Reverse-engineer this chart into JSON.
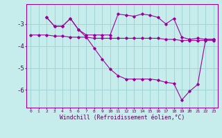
{
  "xlabel": "Windchill (Refroidissement éolien,°C)",
  "background_color": "#c6ecec",
  "grid_color": "#a0d4d4",
  "line_color": "#990099",
  "spine_color": "#990099",
  "tick_color": "#550055",
  "xlim": [
    -0.5,
    23.5
  ],
  "ylim": [
    -6.8,
    -2.1
  ],
  "yticks": [
    -6,
    -5,
    -4,
    -3
  ],
  "xticks": [
    0,
    1,
    2,
    3,
    4,
    5,
    6,
    7,
    8,
    9,
    10,
    11,
    12,
    13,
    14,
    15,
    16,
    17,
    18,
    19,
    20,
    21,
    22,
    23
  ],
  "line1_x": [
    0,
    1,
    2,
    3,
    4,
    5,
    6,
    7,
    8,
    9,
    10,
    11,
    12,
    13,
    14,
    15,
    16,
    17,
    18,
    19,
    20,
    21,
    22,
    23
  ],
  "line1_y": [
    -3.5,
    -3.5,
    -3.5,
    -3.55,
    -3.55,
    -3.6,
    -3.6,
    -3.6,
    -3.65,
    -3.65,
    -3.65,
    -3.65,
    -3.65,
    -3.65,
    -3.65,
    -3.65,
    -3.65,
    -3.7,
    -3.7,
    -3.75,
    -3.75,
    -3.75,
    -3.75,
    -3.75
  ],
  "line2_x": [
    2,
    3,
    4,
    5,
    6,
    7,
    8,
    9,
    10,
    11,
    12,
    13,
    14,
    15,
    16,
    17,
    18,
    19,
    20,
    21,
    22,
    23
  ],
  "line2_y": [
    -2.7,
    -3.1,
    -3.1,
    -2.75,
    -3.25,
    -3.5,
    -3.5,
    -3.5,
    -3.5,
    -2.55,
    -2.6,
    -2.65,
    -2.55,
    -2.6,
    -2.7,
    -3.0,
    -2.75,
    -3.6,
    -3.7,
    -3.65,
    -3.7,
    -3.7
  ],
  "line3_x": [
    2,
    3,
    4,
    5,
    6,
    7,
    8,
    9,
    10,
    11,
    12,
    13,
    14,
    15,
    16,
    17,
    18,
    19,
    20,
    21,
    22,
    23
  ],
  "line3_y": [
    -2.7,
    -3.1,
    -3.1,
    -2.75,
    -3.25,
    -3.6,
    -4.1,
    -4.6,
    -5.05,
    -5.35,
    -5.5,
    -5.5,
    -5.5,
    -5.5,
    -5.55,
    -5.65,
    -5.7,
    -6.45,
    -6.05,
    -5.75,
    -3.7,
    -3.7
  ]
}
